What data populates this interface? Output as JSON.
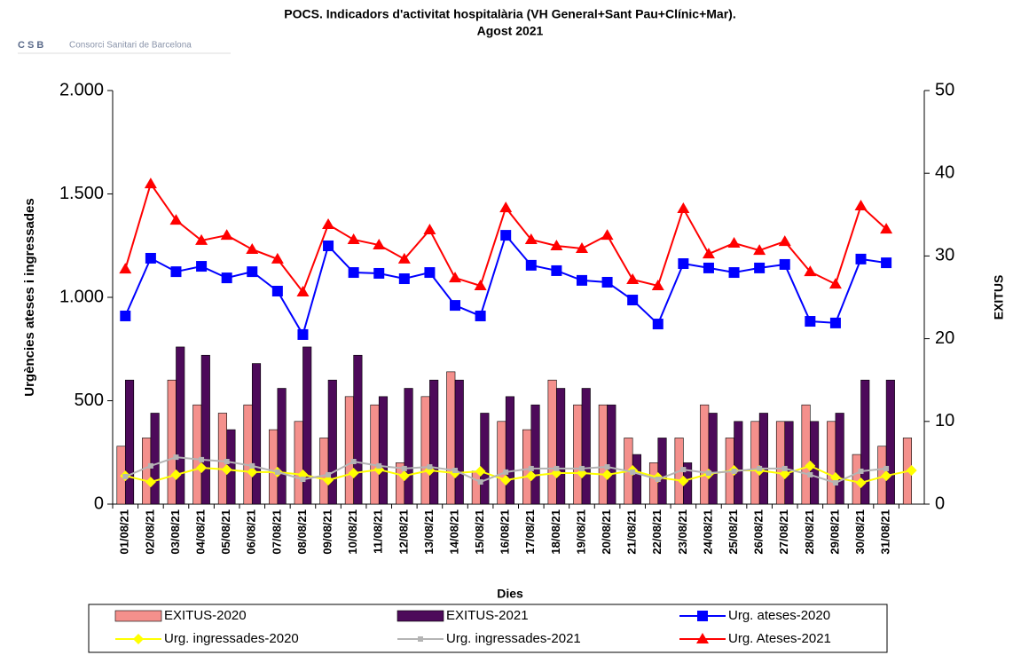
{
  "chart_data": {
    "type": "bar-line",
    "title": "POCS.  Indicadors d'activitat hospitalària (VH General+Sant Pau+Clínic+Mar).",
    "subtitle": "Agost 2021",
    "logo": "C  S  B",
    "logo_text": "Consorci Sanitari de Barcelona",
    "x_label": "Dies",
    "y_label": "Urgències ateses i ingressades",
    "y2_label": "EXITUS",
    "categories": [
      "01/08/21",
      "02/08/21",
      "03/08/21",
      "04/08/21",
      "05/08/21",
      "06/08/21",
      "07/08/21",
      "08/08/21",
      "09/08/21",
      "10/08/21",
      "11/08/21",
      "12/08/21",
      "13/08/21",
      "14/08/21",
      "15/08/21",
      "16/08/21",
      "17/08/21",
      "18/08/21",
      "19/08/21",
      "20/08/21",
      "21/08/21",
      "22/08/21",
      "23/08/21",
      "24/08/21",
      "25/08/21",
      "26/08/21",
      "27/08/21",
      "28/08/21",
      "29/08/21",
      "30/08/21",
      "31/08/21",
      null
    ],
    "ylim": [
      0,
      2000
    ],
    "yticks": [
      {
        "value": 0,
        "label": "0"
      },
      500,
      {
        "value": 1000,
        "label": "1.000"
      },
      {
        "value": 1500,
        "label": "1.500"
      },
      {
        "value": 2000,
        "label": "2.000"
      }
    ],
    "y2lim": [
      0,
      50
    ],
    "y2ticks": [
      0,
      10,
      20,
      30,
      40,
      50
    ],
    "series": [
      {
        "name": "EXITUS-2020",
        "kind": "bar",
        "axis": "y2",
        "color": "#f4908c",
        "values": [
          7,
          8,
          15,
          12,
          11,
          12,
          9,
          10,
          8,
          13,
          12,
          5,
          13,
          16,
          4,
          10,
          9,
          15,
          12,
          12,
          8,
          5,
          8,
          12,
          8,
          10,
          10,
          12,
          10,
          6,
          7,
          8
        ]
      },
      {
        "name": "EXITUS-2021",
        "kind": "bar",
        "axis": "y2",
        "color": "#4d0a5a",
        "values": [
          15,
          11,
          19,
          18,
          9,
          17,
          14,
          19,
          15,
          18,
          13,
          14,
          15,
          15,
          11,
          13,
          12,
          14,
          14,
          12,
          6,
          8,
          5,
          11,
          10,
          11,
          10,
          10,
          11,
          15,
          15,
          null
        ]
      },
      {
        "name": "Urg. ateses-2020",
        "kind": "line",
        "marker": "square",
        "color": "#0000ff",
        "values": [
          910,
          1189,
          1124,
          1150,
          1094,
          1124,
          1030,
          820,
          1249,
          1120,
          1116,
          1090,
          1120,
          961,
          910,
          1300,
          1155,
          1129,
          1082,
          1073,
          987,
          871,
          1163,
          1142,
          1120,
          1142,
          1159,
          884,
          876,
          1185,
          1167,
          null
        ]
      },
      {
        "name": "Urg. ingressades-2020",
        "kind": "line",
        "marker": "diamond",
        "color": "#ffff00",
        "values": [
          137,
          107,
          142,
          176,
          167,
          155,
          155,
          142,
          116,
          150,
          167,
          137,
          163,
          150,
          159,
          116,
          137,
          150,
          150,
          142,
          163,
          129,
          112,
          146,
          163,
          163,
          146,
          185,
          129,
          103,
          137,
          163
        ]
      },
      {
        "name": "Urg. ingressades-2021",
        "kind": "line",
        "marker": "smallsquare",
        "color": "#b4b4b4",
        "values": [
          133,
          185,
          227,
          215,
          206,
          185,
          155,
          120,
          142,
          206,
          185,
          172,
          180,
          163,
          107,
          155,
          172,
          172,
          172,
          180,
          155,
          120,
          167,
          150,
          159,
          172,
          172,
          142,
          103,
          159,
          172,
          null
        ]
      },
      {
        "name": "Urg. Ateses-2021",
        "kind": "line",
        "marker": "triangle",
        "color": "#ff0000",
        "values": [
          1137,
          1549,
          1373,
          1275,
          1300,
          1232,
          1185,
          1026,
          1352,
          1279,
          1253,
          1185,
          1326,
          1094,
          1056,
          1433,
          1279,
          1249,
          1236,
          1300,
          1086,
          1056,
          1429,
          1210,
          1262,
          1227,
          1270,
          1124,
          1064,
          1442,
          1330,
          null
        ]
      }
    ]
  }
}
